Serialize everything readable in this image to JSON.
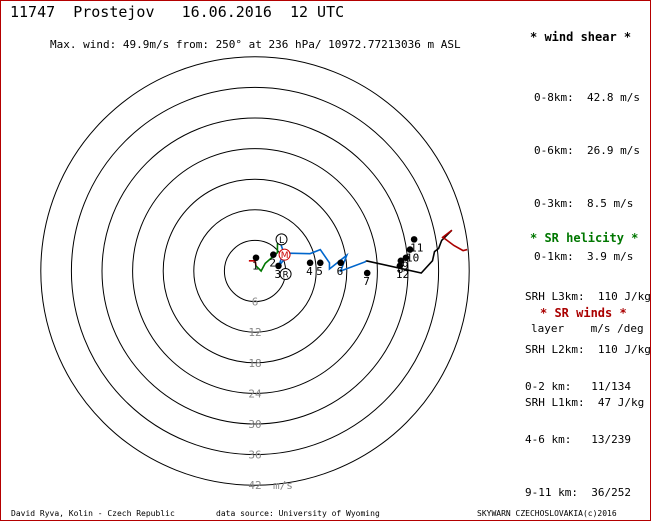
{
  "header": {
    "title": "11747  Prostejov   16.06.2016  12 UTC",
    "max_wind": "Max. wind: 49.9m/s from: 250° at 236 hPa/ 10972.77213036 m ASL"
  },
  "chart_data": {
    "type": "line",
    "title": "11747  Prostejov   16.06.2016  12 UTC",
    "subtitle": "Max. wind: 49.9m/s from: 250° at 236 hPa/ 10972.77213036 m ASL",
    "polar_grid": {
      "rings": [
        6,
        12,
        18,
        24,
        30,
        36,
        42
      ],
      "unit": "m/s"
    },
    "ring_labels": [
      "6",
      "12",
      "18",
      "24",
      "30",
      "36",
      "42"
    ],
    "unit_label": "m/s",
    "series": [
      {
        "color": "#cc0000",
        "points": [
          [
            -1.2,
            2.0
          ],
          [
            0.0,
            2.0
          ],
          [
            0.2,
            1.0
          ]
        ]
      },
      {
        "color": "#007700",
        "points": [
          [
            0.2,
            1.0
          ],
          [
            1.2,
            0.0
          ],
          [
            2.0,
            1.5
          ],
          [
            4.4,
            3.6
          ],
          [
            4.4,
            5.2
          ],
          [
            4.6,
            6.6
          ]
        ]
      },
      {
        "color": "#0066cc",
        "points": [
          [
            4.6,
            6.6
          ],
          [
            5.6,
            3.7
          ],
          [
            4.6,
            0.8
          ],
          [
            6.6,
            3.5
          ],
          [
            10.8,
            3.4
          ],
          [
            12.8,
            4.2
          ],
          [
            14.6,
            1.6
          ],
          [
            14.6,
            0.4
          ],
          [
            18.0,
            3.1
          ],
          [
            16.8,
            0.0
          ],
          [
            21.6,
            1.8
          ],
          [
            21.8,
            2.0
          ]
        ]
      },
      {
        "color": "#000000",
        "points": [
          [
            21.8,
            2.0
          ],
          [
            32.6,
            -0.4
          ],
          [
            34.8,
            2.0
          ],
          [
            35.2,
            3.8
          ],
          [
            36.0,
            4.4
          ],
          [
            36.6,
            6.0
          ],
          [
            38.6,
            8.0
          ]
        ]
      },
      {
        "color": "#aa0000",
        "points": [
          [
            38.6,
            8.0
          ],
          [
            36.8,
            6.6
          ],
          [
            37.4,
            6.2
          ],
          [
            39.0,
            5.0
          ],
          [
            40.8,
            4.0
          ],
          [
            41.6,
            4.2
          ]
        ]
      }
    ],
    "markers": [
      {
        "label": "1",
        "u": 0.2,
        "v": 2.6
      },
      {
        "label": "2",
        "u": 3.6,
        "v": 3.2
      },
      {
        "label": "3",
        "u": 4.6,
        "v": 1.0
      },
      {
        "label": "4",
        "u": 10.8,
        "v": 1.6
      },
      {
        "label": "5",
        "u": 12.8,
        "v": 1.6
      },
      {
        "label": "6",
        "u": 16.8,
        "v": 1.6
      },
      {
        "label": "7",
        "u": 22.0,
        "v": -0.4
      },
      {
        "label": "8",
        "u": 28.6,
        "v": 2.0
      },
      {
        "label": "9",
        "u": 29.6,
        "v": 2.6
      },
      {
        "label": "10",
        "u": 30.4,
        "v": 4.2
      },
      {
        "label": "11",
        "u": 31.2,
        "v": 6.2
      },
      {
        "label": "12",
        "u": 28.4,
        "v": 1.0
      }
    ],
    "storm_motion_labels": [
      {
        "label": "L",
        "u": 5.2,
        "v": 6.2
      },
      {
        "label": "M",
        "u": 5.8,
        "v": 3.2
      },
      {
        "label": "R",
        "u": 6.0,
        "v": -0.6
      }
    ]
  },
  "wind_shear": {
    "title": "* wind shear *",
    "rows": [
      {
        "label": "0-8km:",
        "value": "42.8 m/s"
      },
      {
        "label": "0-6km:",
        "value": "26.9 m/s"
      },
      {
        "label": "0-3km:",
        "value": "8.5 m/s"
      },
      {
        "label": "0-1km:",
        "value": "3.9 m/s"
      }
    ]
  },
  "sr_helicity": {
    "title": "* SR helicity *",
    "rows": [
      {
        "label": "SRH L3km:",
        "value": "110 J/kg"
      },
      {
        "label": "SRH L2km:",
        "value": "110 J/kg"
      },
      {
        "label": "SRH L1km:",
        "value": "47 J/kg"
      }
    ]
  },
  "sr_winds": {
    "title": "* SR winds *",
    "col_layer": "layer",
    "col_units": "m/s /deg",
    "rows": [
      {
        "layer": "0-2 km:",
        "value": "11/134"
      },
      {
        "layer": "4-6 km:",
        "value": "13/239"
      },
      {
        "layer": "9-11 km:",
        "value": "36/252"
      }
    ]
  },
  "footer": {
    "author": "David Ryva, Kolin - Czech Republic",
    "source": "data source: University of Wyoming",
    "credit": "SKYWARN CZECHOSLOVAKIA(c)2016"
  },
  "colors": {
    "frame": "#b40000",
    "grid": "#000000",
    "wind_shear_title": "#000000",
    "helicity_title": "#007700",
    "sr_winds_title": "#aa0000"
  }
}
